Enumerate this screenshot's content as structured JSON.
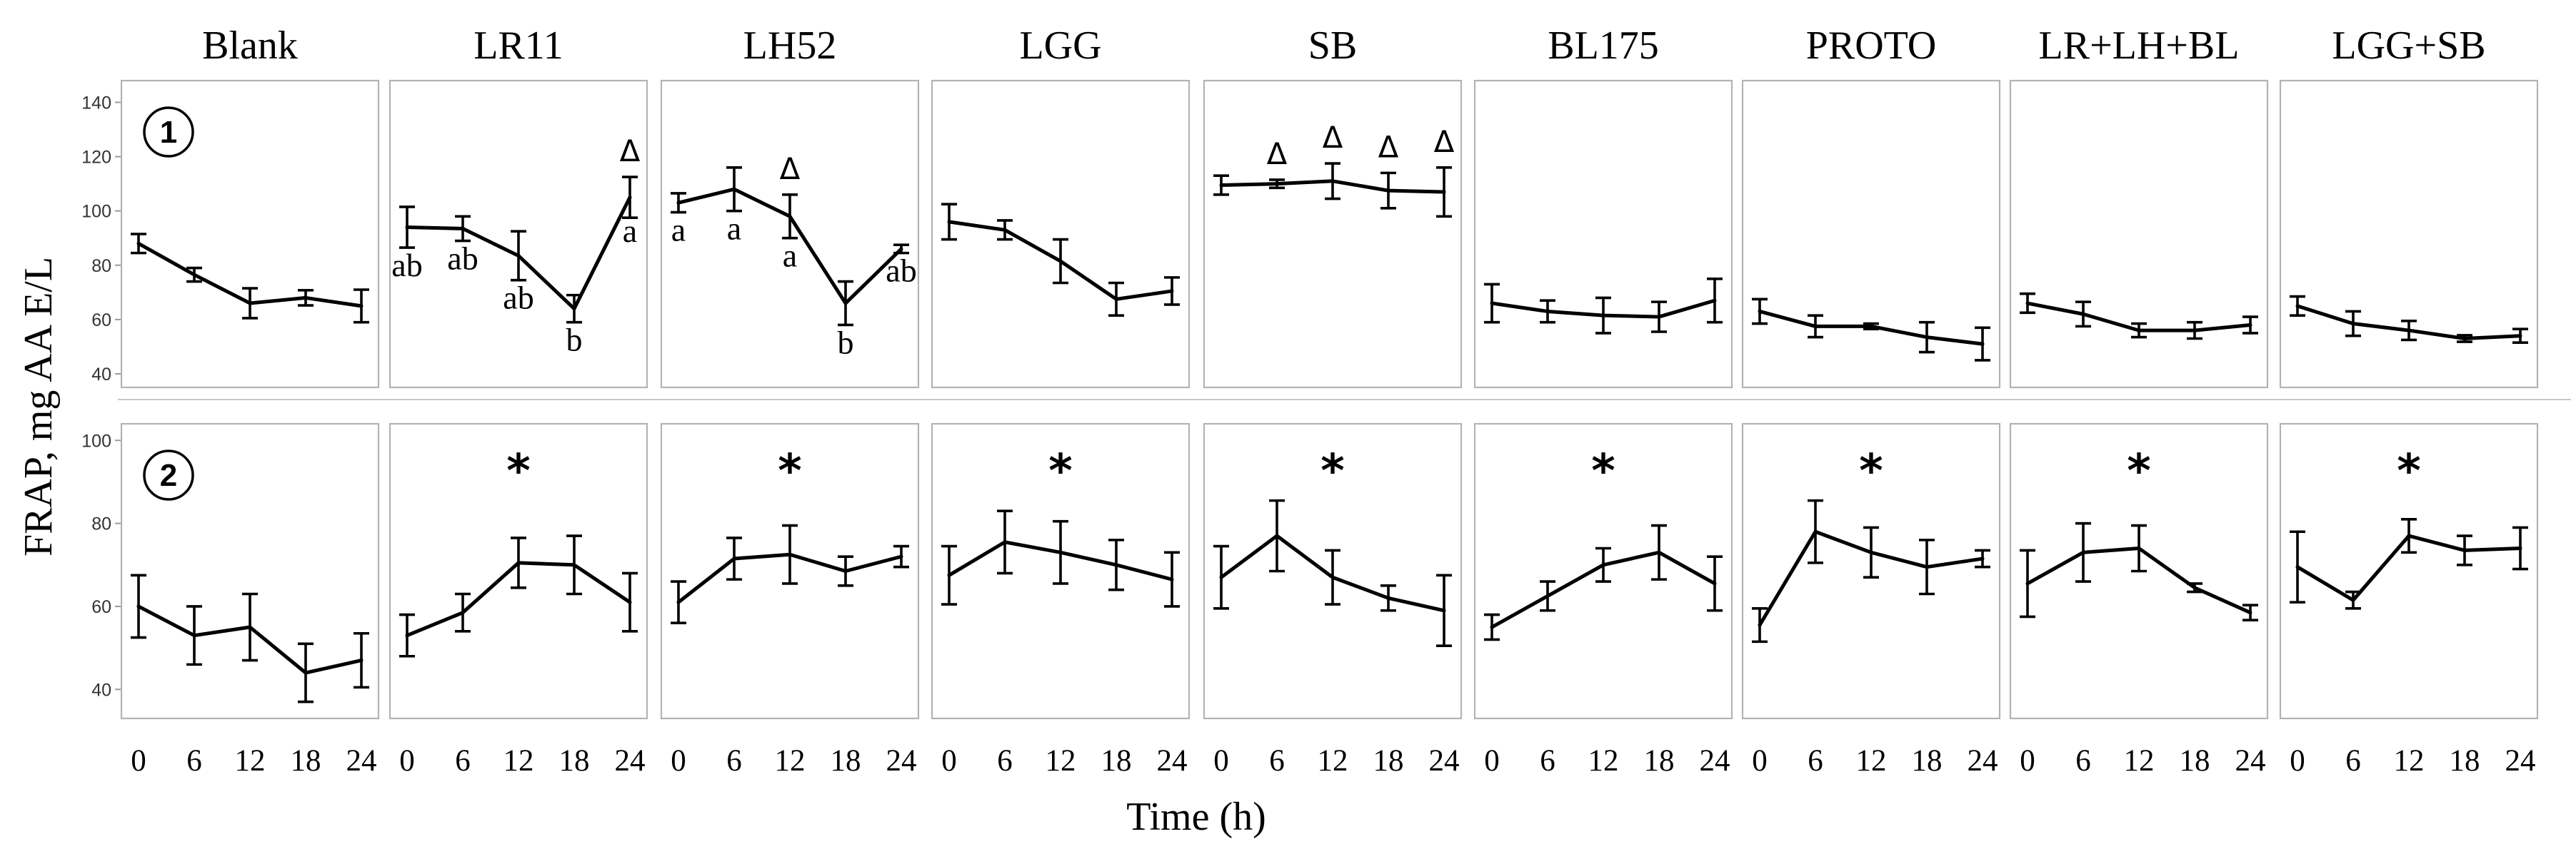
{
  "chart_data": {
    "type": "line",
    "ylabel": "FRAP, mg AA E/L",
    "xlabel": "Time (h)",
    "x": [
      0,
      6,
      12,
      18,
      24
    ],
    "x_tick_labels": [
      "0",
      "6",
      "12",
      "18",
      "24"
    ],
    "columns": [
      "Blank",
      "LR11",
      "LH52",
      "LGG",
      "SB",
      "BL175",
      "PROTO",
      "LR+LH+BL",
      "LGG+SB"
    ],
    "rows": [
      {
        "label": "1",
        "ylim": [
          35,
          148
        ],
        "yticks": [
          40,
          60,
          80,
          100,
          120,
          140
        ],
        "y_tick_labels": [
          "40",
          "60",
          "80",
          "100",
          "120",
          "140"
        ],
        "panels": [
          {
            "column": "Blank",
            "values": [
              88,
              76.5,
              66,
              68,
              65
            ],
            "errors": [
              3.5,
              2.5,
              5.5,
              2.8,
              6
            ],
            "letters": [],
            "deltas": [],
            "star": false
          },
          {
            "column": "LR11",
            "values": [
              94,
              93.5,
              83.5,
              64,
              105
            ],
            "errors": [
              7.5,
              4.5,
              9,
              5,
              7.5
            ],
            "letters": [
              "ab",
              "ab",
              "ab",
              "b",
              "a"
            ],
            "deltas": [
              24
            ],
            "star": false
          },
          {
            "column": "LH52",
            "values": [
              103,
              108,
              98,
              66,
              86
            ],
            "errors": [
              3.5,
              8,
              8,
              8,
              1.5
            ],
            "letters": [
              "a",
              "a",
              "a",
              "b",
              "ab"
            ],
            "deltas": [
              12
            ],
            "star": false
          },
          {
            "column": "LGG",
            "values": [
              96,
              93,
              81.5,
              67.5,
              70.5
            ],
            "errors": [
              6.5,
              3.5,
              8,
              6,
              5
            ],
            "letters": [],
            "deltas": [],
            "star": false
          },
          {
            "column": "SB",
            "values": [
              109.5,
              110,
              111,
              107.5,
              107
            ],
            "errors": [
              3.5,
              1.5,
              6.5,
              6.5,
              9
            ],
            "letters": [],
            "deltas": [
              6,
              12,
              18,
              24
            ],
            "star": false
          },
          {
            "column": "BL175",
            "values": [
              66,
              63,
              61.5,
              61,
              67
            ],
            "errors": [
              7,
              4,
              6.5,
              5.5,
              8
            ],
            "letters": [],
            "deltas": [],
            "star": false
          },
          {
            "column": "PROTO",
            "values": [
              63,
              57.5,
              57.5,
              53.5,
              51
            ],
            "errors": [
              4.5,
              4,
              1,
              5.5,
              6
            ],
            "letters": [],
            "deltas": [],
            "star": false
          },
          {
            "column": "LR+LH+BL",
            "values": [
              66,
              62,
              56,
              56,
              58
            ],
            "errors": [
              3.5,
              4.5,
              2.5,
              3,
              3
            ],
            "letters": [],
            "deltas": [],
            "star": false
          },
          {
            "column": "LGG+SB",
            "values": [
              65,
              58.5,
              56,
              53,
              54
            ],
            "errors": [
              3.5,
              4.5,
              3.5,
              1.2,
              2.5
            ],
            "letters": [],
            "deltas": [],
            "star": false
          }
        ]
      },
      {
        "label": "2",
        "ylim": [
          33,
          104
        ],
        "yticks": [
          40,
          60,
          80,
          100
        ],
        "y_tick_labels": [
          "40",
          "60",
          "80",
          "100"
        ],
        "panels": [
          {
            "column": "Blank",
            "values": [
              60,
              53,
              55,
              44,
              47
            ],
            "errors": [
              7.5,
              7,
              8,
              7,
              6.5
            ],
            "letters": [],
            "deltas": [],
            "star": false
          },
          {
            "column": "LR11",
            "values": [
              53,
              58.5,
              70.5,
              70,
              61
            ],
            "errors": [
              5,
              4.5,
              6,
              7,
              7
            ],
            "letters": [],
            "deltas": [],
            "star": true
          },
          {
            "column": "LH52",
            "values": [
              61,
              71.5,
              72.5,
              68.5,
              72
            ],
            "errors": [
              5,
              5,
              7,
              3.5,
              2.5
            ],
            "letters": [],
            "deltas": [],
            "star": true
          },
          {
            "column": "LGG",
            "values": [
              67.5,
              75.5,
              73,
              70,
              66.5
            ],
            "errors": [
              7,
              7.5,
              7.5,
              6,
              6.5
            ],
            "letters": [],
            "deltas": [],
            "star": true
          },
          {
            "column": "SB",
            "values": [
              67,
              77,
              67,
              62,
              59
            ],
            "errors": [
              7.5,
              8.5,
              6.5,
              3,
              8.5
            ],
            "letters": [],
            "deltas": [],
            "star": true
          },
          {
            "column": "BL175",
            "values": [
              55,
              62.5,
              70,
              73,
              65.5
            ],
            "errors": [
              3,
              3.5,
              4,
              6.5,
              6.5
            ],
            "letters": [],
            "deltas": [],
            "star": true
          },
          {
            "column": "PROTO",
            "values": [
              55.5,
              78,
              73,
              69.5,
              71.5
            ],
            "errors": [
              4,
              7.5,
              6,
              6.5,
              2
            ],
            "letters": [],
            "deltas": [],
            "star": true
          },
          {
            "column": "LR+LH+BL",
            "values": [
              65.5,
              73,
              74,
              64.5,
              58.5
            ],
            "errors": [
              8,
              7,
              5.5,
              1,
              1.8
            ],
            "letters": [],
            "deltas": [],
            "star": true
          },
          {
            "column": "LGG+SB",
            "values": [
              69.5,
              61.5,
              77,
              73.5,
              74
            ],
            "errors": [
              8.5,
              2,
              4,
              3.5,
              5
            ],
            "letters": [],
            "deltas": [],
            "star": true
          }
        ]
      }
    ],
    "annotations": {
      "delta": "Δ",
      "star": "*"
    }
  }
}
